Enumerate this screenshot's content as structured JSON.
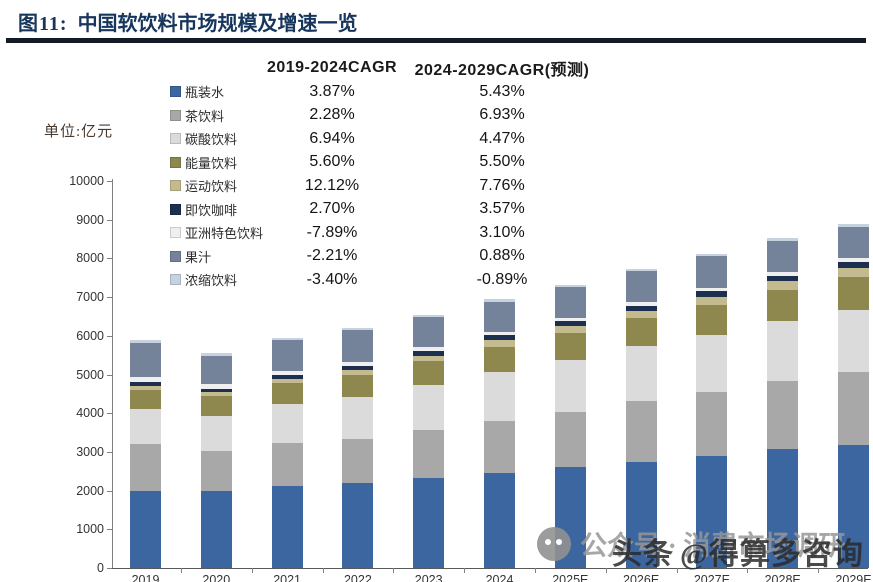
{
  "figure": {
    "label": "图11:",
    "title": "中国软饮料市场规模及增速一览",
    "unit_label": "单位:亿元",
    "accent_color": "#17365D"
  },
  "cagr_table": {
    "col1_header": "2019-2024CAGR",
    "col2_header": "2024-2029CAGR(预测)",
    "rows": [
      {
        "name": "瓶装水",
        "color": "#3B66A0",
        "cagr_2019_2024": "3.87%",
        "cagr_2024_2029": "5.43%"
      },
      {
        "name": "茶饮料",
        "color": "#A8A8A8",
        "cagr_2019_2024": "2.28%",
        "cagr_2024_2029": "6.93%"
      },
      {
        "name": "碳酸饮料",
        "color": "#DBDBDB",
        "cagr_2019_2024": "6.94%",
        "cagr_2024_2029": "4.47%"
      },
      {
        "name": "能量饮料",
        "color": "#8E884E",
        "cagr_2019_2024": "5.60%",
        "cagr_2024_2029": "5.50%"
      },
      {
        "name": "运动饮料",
        "color": "#C3BB8F",
        "cagr_2019_2024": "12.12%",
        "cagr_2024_2029": "7.76%"
      },
      {
        "name": "即饮咖啡",
        "color": "#1C2F4E",
        "cagr_2019_2024": "2.70%",
        "cagr_2024_2029": "3.57%"
      },
      {
        "name": "亚洲特色饮料",
        "color": "#EFEFEF",
        "cagr_2019_2024": "-7.89%",
        "cagr_2024_2029": "3.10%"
      },
      {
        "name": "果汁",
        "color": "#75839A",
        "cagr_2019_2024": "-2.21%",
        "cagr_2024_2029": "0.88%"
      },
      {
        "name": "浓缩饮料",
        "color": "#C7D2E0",
        "cagr_2019_2024": "-3.40%",
        "cagr_2024_2029": "-0.89%"
      }
    ]
  },
  "chart_data": {
    "type": "bar",
    "stacked": true,
    "title": "中国软饮料市场规模及增速一览",
    "unit": "亿元",
    "ylim": [
      0,
      10000
    ],
    "ytick_step": 1000,
    "grid": false,
    "legend_position": "top-left table with CAGR columns",
    "categories": [
      "2019",
      "2020",
      "2021",
      "2022",
      "2023",
      "2024",
      "2025E",
      "2026E",
      "2027E",
      "2028E",
      "2029E"
    ],
    "series": [
      {
        "name": "瓶装水",
        "color": "#3B66A0",
        "values": [
          2000,
          1980,
          2120,
          2190,
          2330,
          2450,
          2600,
          2750,
          2900,
          3080,
          3190
        ]
      },
      {
        "name": "茶饮料",
        "color": "#A8A8A8",
        "values": [
          1200,
          1040,
          1100,
          1140,
          1230,
          1340,
          1435,
          1560,
          1660,
          1760,
          1875
        ]
      },
      {
        "name": "碳酸饮料",
        "color": "#DBDBDB",
        "values": [
          915,
          920,
          1010,
          1090,
          1180,
          1280,
          1340,
          1420,
          1460,
          1540,
          1595
        ]
      },
      {
        "name": "能量饮料",
        "color": "#8E884E",
        "values": [
          495,
          510,
          545,
          575,
          610,
          650,
          690,
          724,
          780,
          805,
          850
        ]
      },
      {
        "name": "运动饮料",
        "color": "#C3BB8F",
        "values": [
          96,
          85,
          105,
          120,
          140,
          170,
          183,
          197,
          213,
          229,
          247
        ]
      },
      {
        "name": "即饮咖啡",
        "color": "#1C2F4E",
        "values": [
          105,
          100,
          108,
          110,
          115,
          120,
          124,
          129,
          133,
          138,
          143
        ]
      },
      {
        "name": "亚洲特色饮料",
        "color": "#EFEFEF",
        "values": [
          136,
          115,
          110,
          105,
          98,
          90,
          93,
          96,
          99,
          102,
          105
        ]
      },
      {
        "name": "果汁",
        "color": "#75839A",
        "values": [
          870,
          740,
          790,
          810,
          790,
          780,
          787,
          794,
          810,
          808,
          815
        ]
      },
      {
        "name": "浓缩饮料",
        "color": "#C7D2E0",
        "values": [
          71,
          65,
          62,
          60,
          57,
          60,
          59,
          59,
          58,
          58,
          57
        ]
      }
    ],
    "totals_approx": [
      5890,
      5555,
      5950,
      6200,
      6550,
      6940,
      7310,
      7730,
      8110,
      8520,
      8880
    ]
  },
  "watermarks": {
    "wechat_text": "公众号 · 消费市场调研",
    "toutiao_logo": "头条",
    "toutiao_handle": "@得算多咨询"
  }
}
